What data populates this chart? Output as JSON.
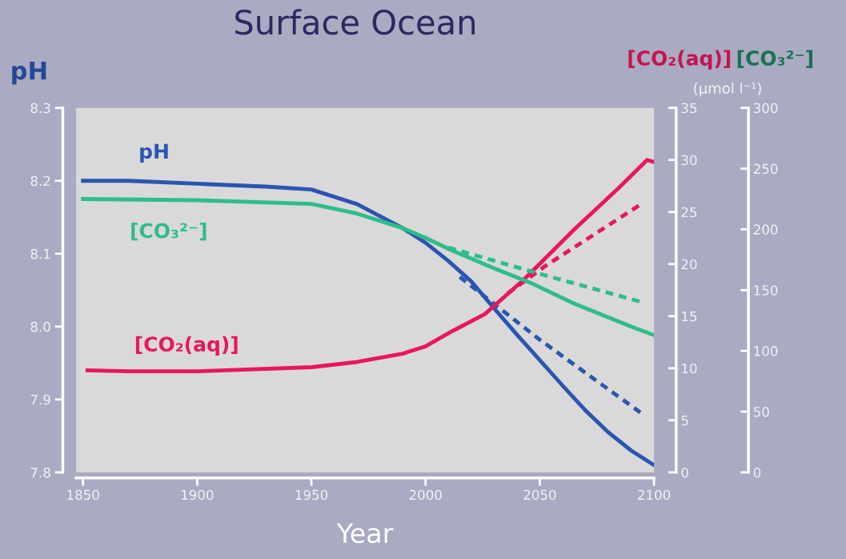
{
  "chart_data": {
    "type": "line",
    "title": "Surface Ocean",
    "xlabel": "Year",
    "ylabel": "pH",
    "y2label": "[CO₂(aq)]",
    "y3label": "[CO₃²⁻]",
    "annotations": [
      "(µmol l⁻¹)"
    ],
    "xlim": [
      1847,
      2100
    ],
    "xticks": [
      1850,
      1900,
      1950,
      2000,
      2050,
      2100
    ],
    "ylim": [
      7.8,
      8.3
    ],
    "yticks": [
      {
        "value": 7.8,
        "label": "7.8"
      },
      {
        "value": 7.9,
        "label": "7.9"
      },
      {
        "value": 8.0,
        "label": "8.0"
      },
      {
        "value": 8.1,
        "label": "8.1"
      },
      {
        "value": 8.2,
        "label": "8.2"
      },
      {
        "value": 8.3,
        "label": "8.3"
      }
    ],
    "y2lim": [
      0,
      35
    ],
    "y2ticks": [
      0,
      5,
      10,
      15,
      20,
      25,
      30,
      35
    ],
    "y3lim": [
      0,
      300
    ],
    "y3ticks": [
      0,
      50,
      100,
      150,
      200,
      250,
      300
    ],
    "grid": false,
    "legend": false,
    "marker": "none",
    "series": [
      {
        "name": "pH",
        "color": "#2b55b0",
        "line_style": "solid",
        "x": [
          1850,
          1870,
          1900,
          1930,
          1950,
          1970,
          1990,
          2000,
          2010,
          2020,
          2030,
          2040,
          2050,
          2060,
          2070,
          2080,
          2090,
          2100
        ],
        "values": [
          8.2,
          8.2,
          8.196,
          8.192,
          8.188,
          8.168,
          8.135,
          8.115,
          8.09,
          8.062,
          8.025,
          7.989,
          7.954,
          7.919,
          7.885,
          7.855,
          7.83,
          7.81
        ]
      },
      {
        "color": "#2b55b0",
        "line_style": "dashed",
        "x": [
          2015,
          2050,
          2095
        ],
        "values": [
          8.068,
          7.982,
          7.88
        ]
      },
      {
        "name": "[CO₃²⁻]",
        "color": "#2ebd8a",
        "line_style": "solid",
        "axis": "y3",
        "x": [
          1850,
          1900,
          1950,
          1970,
          1990,
          2000,
          2010,
          2030,
          2046,
          2065,
          2090,
          2100
        ],
        "values": [
          225,
          224,
          221,
          213,
          201,
          193,
          184,
          168,
          156,
          139,
          120,
          113
        ]
      },
      {
        "color": "#2ebd8a",
        "line_style": "dashed",
        "axis": "y3",
        "x": [
          2010,
          2047,
          2095
        ],
        "values": [
          185,
          165,
          140
        ]
      },
      {
        "name": "[CO₂(aq)]",
        "color": "#e8175d",
        "line_style": "solid",
        "axis": "y2",
        "x": [
          1852,
          1870,
          1900,
          1950,
          1970,
          1990,
          2000,
          2012,
          2026,
          2043,
          2065,
          2085,
          2097,
          2100
        ],
        "values": [
          9.8,
          9.7,
          9.7,
          10.1,
          10.6,
          11.4,
          12.1,
          13.6,
          15.2,
          18.5,
          23.3,
          27.4,
          30.0,
          29.8
        ]
      },
      {
        "color": "#e8175d",
        "line_style": "dashed",
        "axis": "y2",
        "x": [
          2036,
          2053,
          2094
        ],
        "values": [
          17.2,
          19.9,
          25.7
        ]
      }
    ]
  }
}
